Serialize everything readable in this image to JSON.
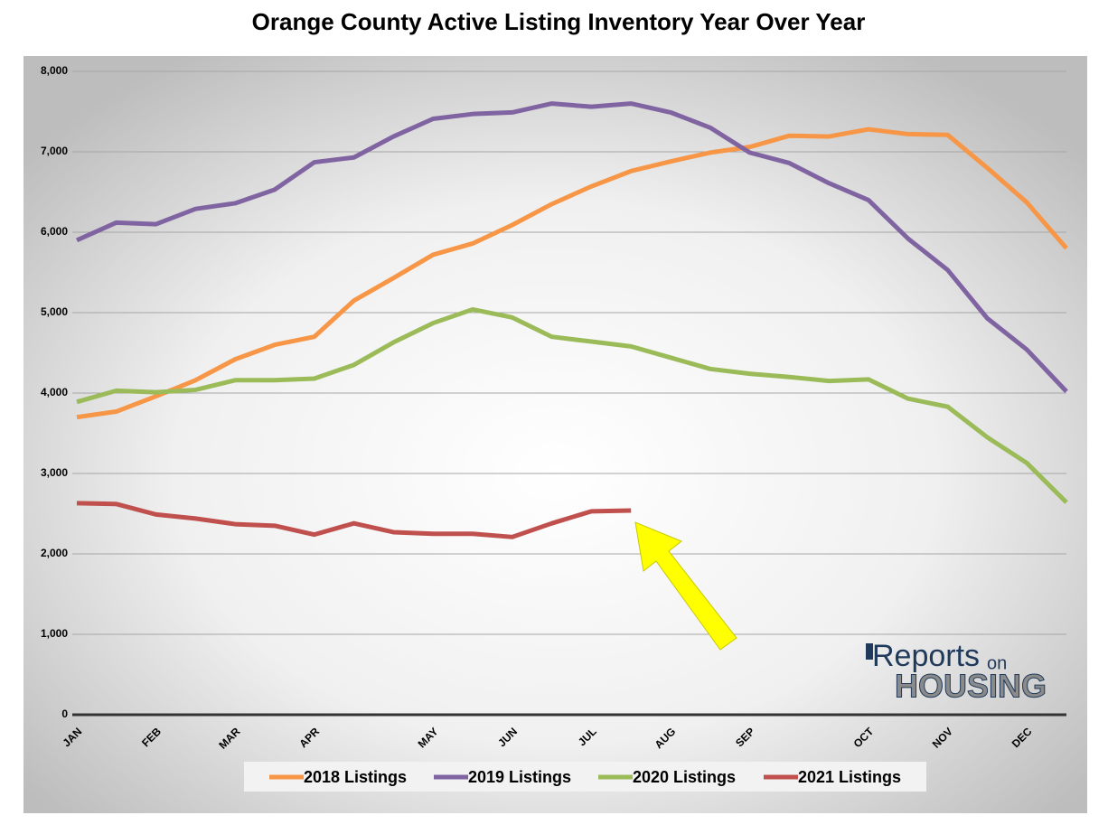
{
  "chart_data": {
    "type": "line",
    "title": "Orange County Active Listing Inventory Year Over Year",
    "categories": [
      "JAN",
      null,
      "FEB",
      null,
      "MAR",
      null,
      "APR",
      null,
      null,
      "MAY",
      null,
      "JUN",
      null,
      "JUL",
      null,
      "AUG",
      null,
      "SEP",
      null,
      null,
      "OCT",
      null,
      "NOV",
      null,
      "DEC",
      null
    ],
    "series": [
      {
        "name": "2018 Listings",
        "color": "#f79646",
        "values": [
          3700,
          3770,
          3960,
          4160,
          4420,
          4600,
          4700,
          5150,
          5430,
          5720,
          5860,
          6090,
          6350,
          6570,
          6760,
          6880,
          6990,
          7060,
          7200,
          7190,
          7280,
          7220,
          7210,
          6800,
          6370,
          5800
        ]
      },
      {
        "name": "2019 Listings",
        "color": "#8064a2",
        "values": [
          5900,
          6120,
          6100,
          6290,
          6360,
          6530,
          6870,
          6930,
          7190,
          7410,
          7470,
          7490,
          7600,
          7560,
          7600,
          7490,
          7300,
          6990,
          6860,
          6610,
          6400,
          5920,
          5530,
          4930,
          4540,
          4020
        ]
      },
      {
        "name": "2020 Listings",
        "color": "#9bbb59",
        "values": [
          3890,
          4030,
          4010,
          4040,
          4160,
          4160,
          4180,
          4350,
          4630,
          4870,
          5040,
          4940,
          4700,
          4640,
          4580,
          4440,
          4300,
          4240,
          4200,
          4150,
          4170,
          3930,
          3830,
          3450,
          3130,
          2640
        ]
      },
      {
        "name": "2021 Listings",
        "color": "#c0504d",
        "values": [
          2630,
          2620,
          2490,
          2440,
          2370,
          2350,
          2240,
          2380,
          2270,
          2250,
          2250,
          2210,
          2380,
          2530,
          2540,
          null,
          null,
          null,
          null,
          null,
          null,
          null,
          null,
          null,
          null,
          null
        ]
      }
    ],
    "ylim": [
      0,
      8000
    ],
    "yticks": [
      0,
      {
        "value": 1000,
        "label": "1,000"
      },
      {
        "value": 2000,
        "label": "2,000"
      },
      {
        "value": 3000,
        "label": "3,000"
      },
      {
        "value": 4000,
        "label": "4,000"
      },
      {
        "value": 5000,
        "label": "5,000"
      },
      {
        "value": 6000,
        "label": "6,000"
      },
      {
        "value": 7000,
        "label": "7,000"
      },
      {
        "value": 8000,
        "label": "8,000"
      }
    ],
    "grid": true,
    "legend": "bottom"
  },
  "logo": {
    "word": "Reports",
    "small": "on",
    "big": "HOUSING"
  }
}
